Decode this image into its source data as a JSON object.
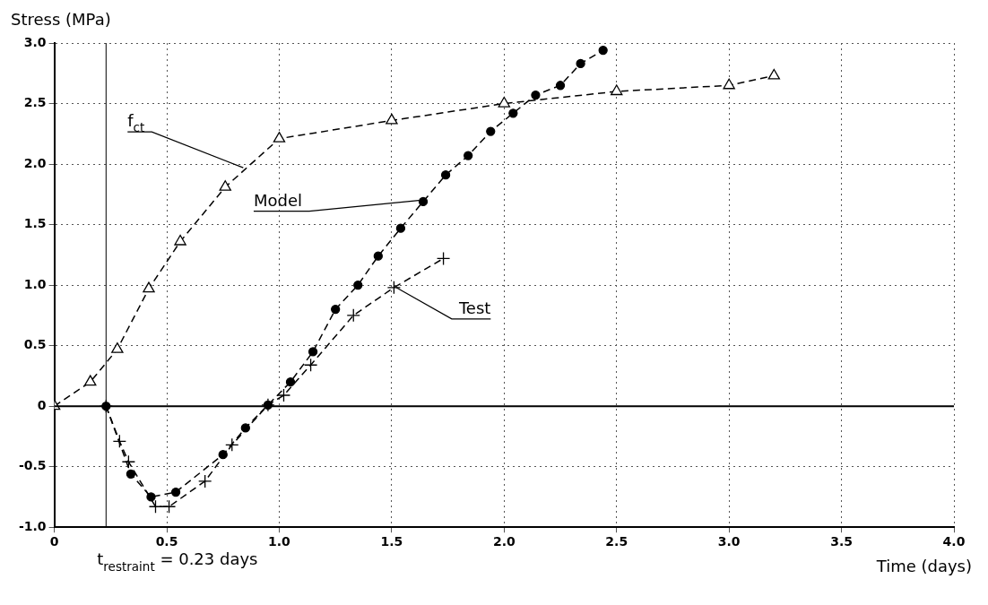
{
  "chart_data": {
    "type": "line",
    "xlabel": "Time (days)",
    "ylabel": "Stress (MPa)",
    "xlim": [
      0,
      4
    ],
    "xticks": [
      0,
      {
        "value": 0.5,
        "label": "0.5"
      },
      {
        "value": 1,
        "label": "1.0"
      },
      {
        "value": 1.5,
        "label": "1.5"
      },
      {
        "value": 2,
        "label": "2.0"
      },
      {
        "value": 2.5,
        "label": "2.5"
      },
      {
        "value": 3,
        "label": "3.0"
      },
      {
        "value": 3.5,
        "label": "3.5"
      },
      {
        "value": 4,
        "label": "4.0"
      }
    ],
    "ylim": [
      -1,
      3
    ],
    "yticks": [
      {
        "value": -1,
        "label": "-1.0"
      },
      {
        "value": -0.5,
        "label": "-0.5"
      },
      0,
      {
        "value": 0.5,
        "label": "0.5"
      },
      {
        "value": 1,
        "label": "1.0"
      },
      {
        "value": 1.5,
        "label": "1.5"
      },
      {
        "value": 2,
        "label": "2.0"
      },
      {
        "value": 2.5,
        "label": "2.5"
      },
      {
        "value": 3,
        "label": "3.0"
      }
    ],
    "grid": true,
    "legend": false,
    "line_style": "dashed",
    "series": [
      {
        "color": "#000000",
        "marker": "triangle",
        "x": [
          0,
          0.16,
          0.28,
          0.42,
          0.56,
          0.76,
          1.0,
          1.5,
          2.0,
          2.5,
          3.0,
          3.2
        ],
        "values": [
          0,
          0.2,
          0.47,
          0.97,
          1.36,
          1.81,
          2.21,
          2.36,
          2.5,
          2.6,
          2.65,
          2.73
        ]
      },
      {
        "color": "#000000",
        "marker": "circle",
        "x": [
          0.23,
          0.34,
          0.43,
          0.54,
          0.75,
          0.85,
          0.95,
          1.05,
          1.15,
          1.25,
          1.35,
          1.44,
          1.54,
          1.64,
          1.74,
          1.84,
          1.94,
          2.04,
          2.14,
          2.25,
          2.34,
          2.44
        ],
        "values": [
          0,
          -0.56,
          -0.75,
          -0.71,
          -0.4,
          -0.18,
          0.01,
          0.2,
          0.45,
          0.8,
          1.0,
          1.24,
          1.47,
          1.69,
          1.91,
          2.07,
          2.27,
          2.42,
          2.57,
          2.65,
          2.83,
          2.94
        ]
      },
      {
        "color": "#000000",
        "marker": "cross",
        "x": [
          0.23,
          0.29,
          0.33,
          0.45,
          0.51,
          0.67,
          0.79,
          0.95,
          1.02,
          1.14,
          1.33,
          1.51,
          1.73
        ],
        "values": [
          0,
          -0.29,
          -0.46,
          -0.83,
          -0.83,
          -0.62,
          -0.32,
          0.01,
          0.09,
          0.34,
          0.75,
          0.98,
          1.22
        ]
      }
    ],
    "ref_lines": [
      {
        "axis": "y",
        "value": 0,
        "line_style": "solid"
      },
      {
        "axis": "x",
        "value": 0.23,
        "label": "t$_{restraint}$ = 0.23 days",
        "line_style": "solid"
      }
    ],
    "annotations": [
      {
        "text": "f$_{ct}$",
        "x": 0.84,
        "y": 1.97
      },
      {
        "text": "Model",
        "x": 1.62,
        "y": 1.7
      },
      {
        "text": "Test",
        "x": 1.52,
        "y": 0.98
      }
    ]
  }
}
